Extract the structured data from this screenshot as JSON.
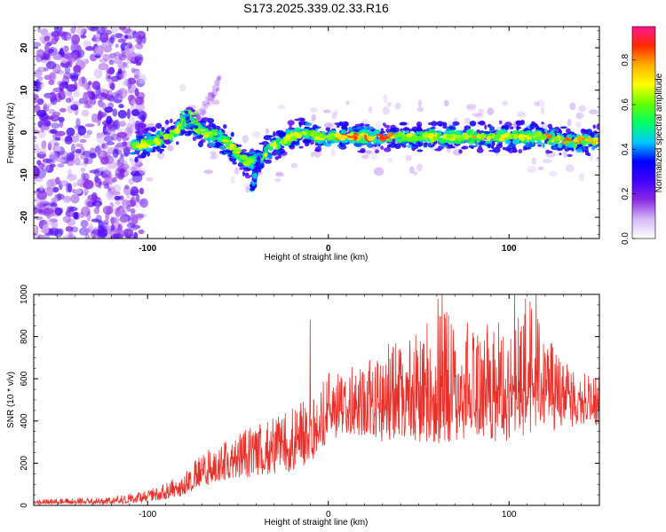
{
  "title": "S173.2025.339.02.33.R16",
  "chart_data": [
    {
      "type": "heatmap",
      "name": "spectrogram",
      "title": "S173.2025.339.02.33.R16",
      "xlabel": "Height of straight line (km)",
      "ylabel": "Frequency (Hz)",
      "xlim": [
        -163,
        150
      ],
      "ylim": [
        -25,
        25
      ],
      "xticks": [
        -100,
        0,
        100
      ],
      "yticks": [
        20,
        10,
        0,
        -10,
        -20
      ],
      "colorbar": {
        "label": "Normalized spectral amplitude",
        "range": [
          0.0,
          0.95
        ],
        "ticks": [
          "0.0",
          "0.2",
          "0.4",
          "0.6",
          "0.8"
        ],
        "colors": [
          "#ffffff",
          "#d7b8f8",
          "#8a2be2",
          "#3f00ff",
          "#0000ff",
          "#00ccff",
          "#00ff66",
          "#66ff00",
          "#ffff00",
          "#ffb000",
          "#ff2a00",
          "#ff1493"
        ]
      },
      "ridge": {
        "description_points_x": [
          -105,
          -95,
          -85,
          -78,
          -70,
          -60,
          -52,
          -45,
          -40,
          -35,
          -30,
          -25,
          -20,
          -15,
          -10,
          -5,
          0,
          10,
          20,
          30,
          40,
          50,
          60,
          70,
          80,
          90,
          100,
          110,
          120,
          130,
          140,
          150
        ],
        "description_points_y": [
          -3,
          -2,
          0,
          3,
          0,
          -1,
          -4,
          -7,
          -7,
          -5,
          -3,
          -2,
          -1,
          0,
          0,
          -1,
          -1,
          -1,
          -1,
          -1,
          -1,
          -1,
          -1,
          -1,
          -1,
          -1,
          -1,
          -1,
          -1,
          -2,
          -2,
          -2
        ],
        "peak_amplitude": 0.9
      },
      "secondary_ridge": {
        "x": [
          -42,
          -41,
          -40,
          -39,
          -38
        ],
        "y": [
          -13,
          -11,
          -9,
          -7,
          -5
        ]
      },
      "noise_region_x": [
        -163,
        -110
      ]
    },
    {
      "type": "line",
      "name": "snr",
      "xlabel": "Height of straight line (km)",
      "ylabel": "SNR (10 * v/v)",
      "xlim": [
        -163,
        150
      ],
      "ylim": [
        0,
        1000
      ],
      "xticks": [
        -100,
        0,
        100
      ],
      "yticks": [
        0,
        200,
        400,
        600,
        800,
        1000
      ],
      "color": "#e8302a",
      "envelope_x": [
        -163,
        -120,
        -110,
        -100,
        -90,
        -80,
        -70,
        -60,
        -50,
        -40,
        -30,
        -20,
        -10,
        -5,
        0,
        10,
        20,
        30,
        40,
        50,
        60,
        70,
        80,
        90,
        100,
        110,
        120,
        130,
        140,
        150
      ],
      "envelope_low": [
        5,
        5,
        10,
        15,
        30,
        45,
        90,
        110,
        120,
        140,
        150,
        160,
        200,
        260,
        300,
        320,
        330,
        300,
        320,
        300,
        280,
        300,
        320,
        300,
        300,
        320,
        340,
        360,
        380,
        380
      ],
      "envelope_high": [
        30,
        40,
        60,
        70,
        110,
        150,
        250,
        300,
        350,
        380,
        420,
        460,
        520,
        560,
        640,
        640,
        700,
        760,
        800,
        840,
        1000,
        900,
        860,
        880,
        880,
        1000,
        820,
        720,
        660,
        640
      ],
      "peaks": [
        {
          "x": -10,
          "y": 880
        },
        {
          "x": 63,
          "y": 1000
        },
        {
          "x": 103,
          "y": 1000
        },
        {
          "x": 115,
          "y": 1000
        }
      ]
    }
  ]
}
